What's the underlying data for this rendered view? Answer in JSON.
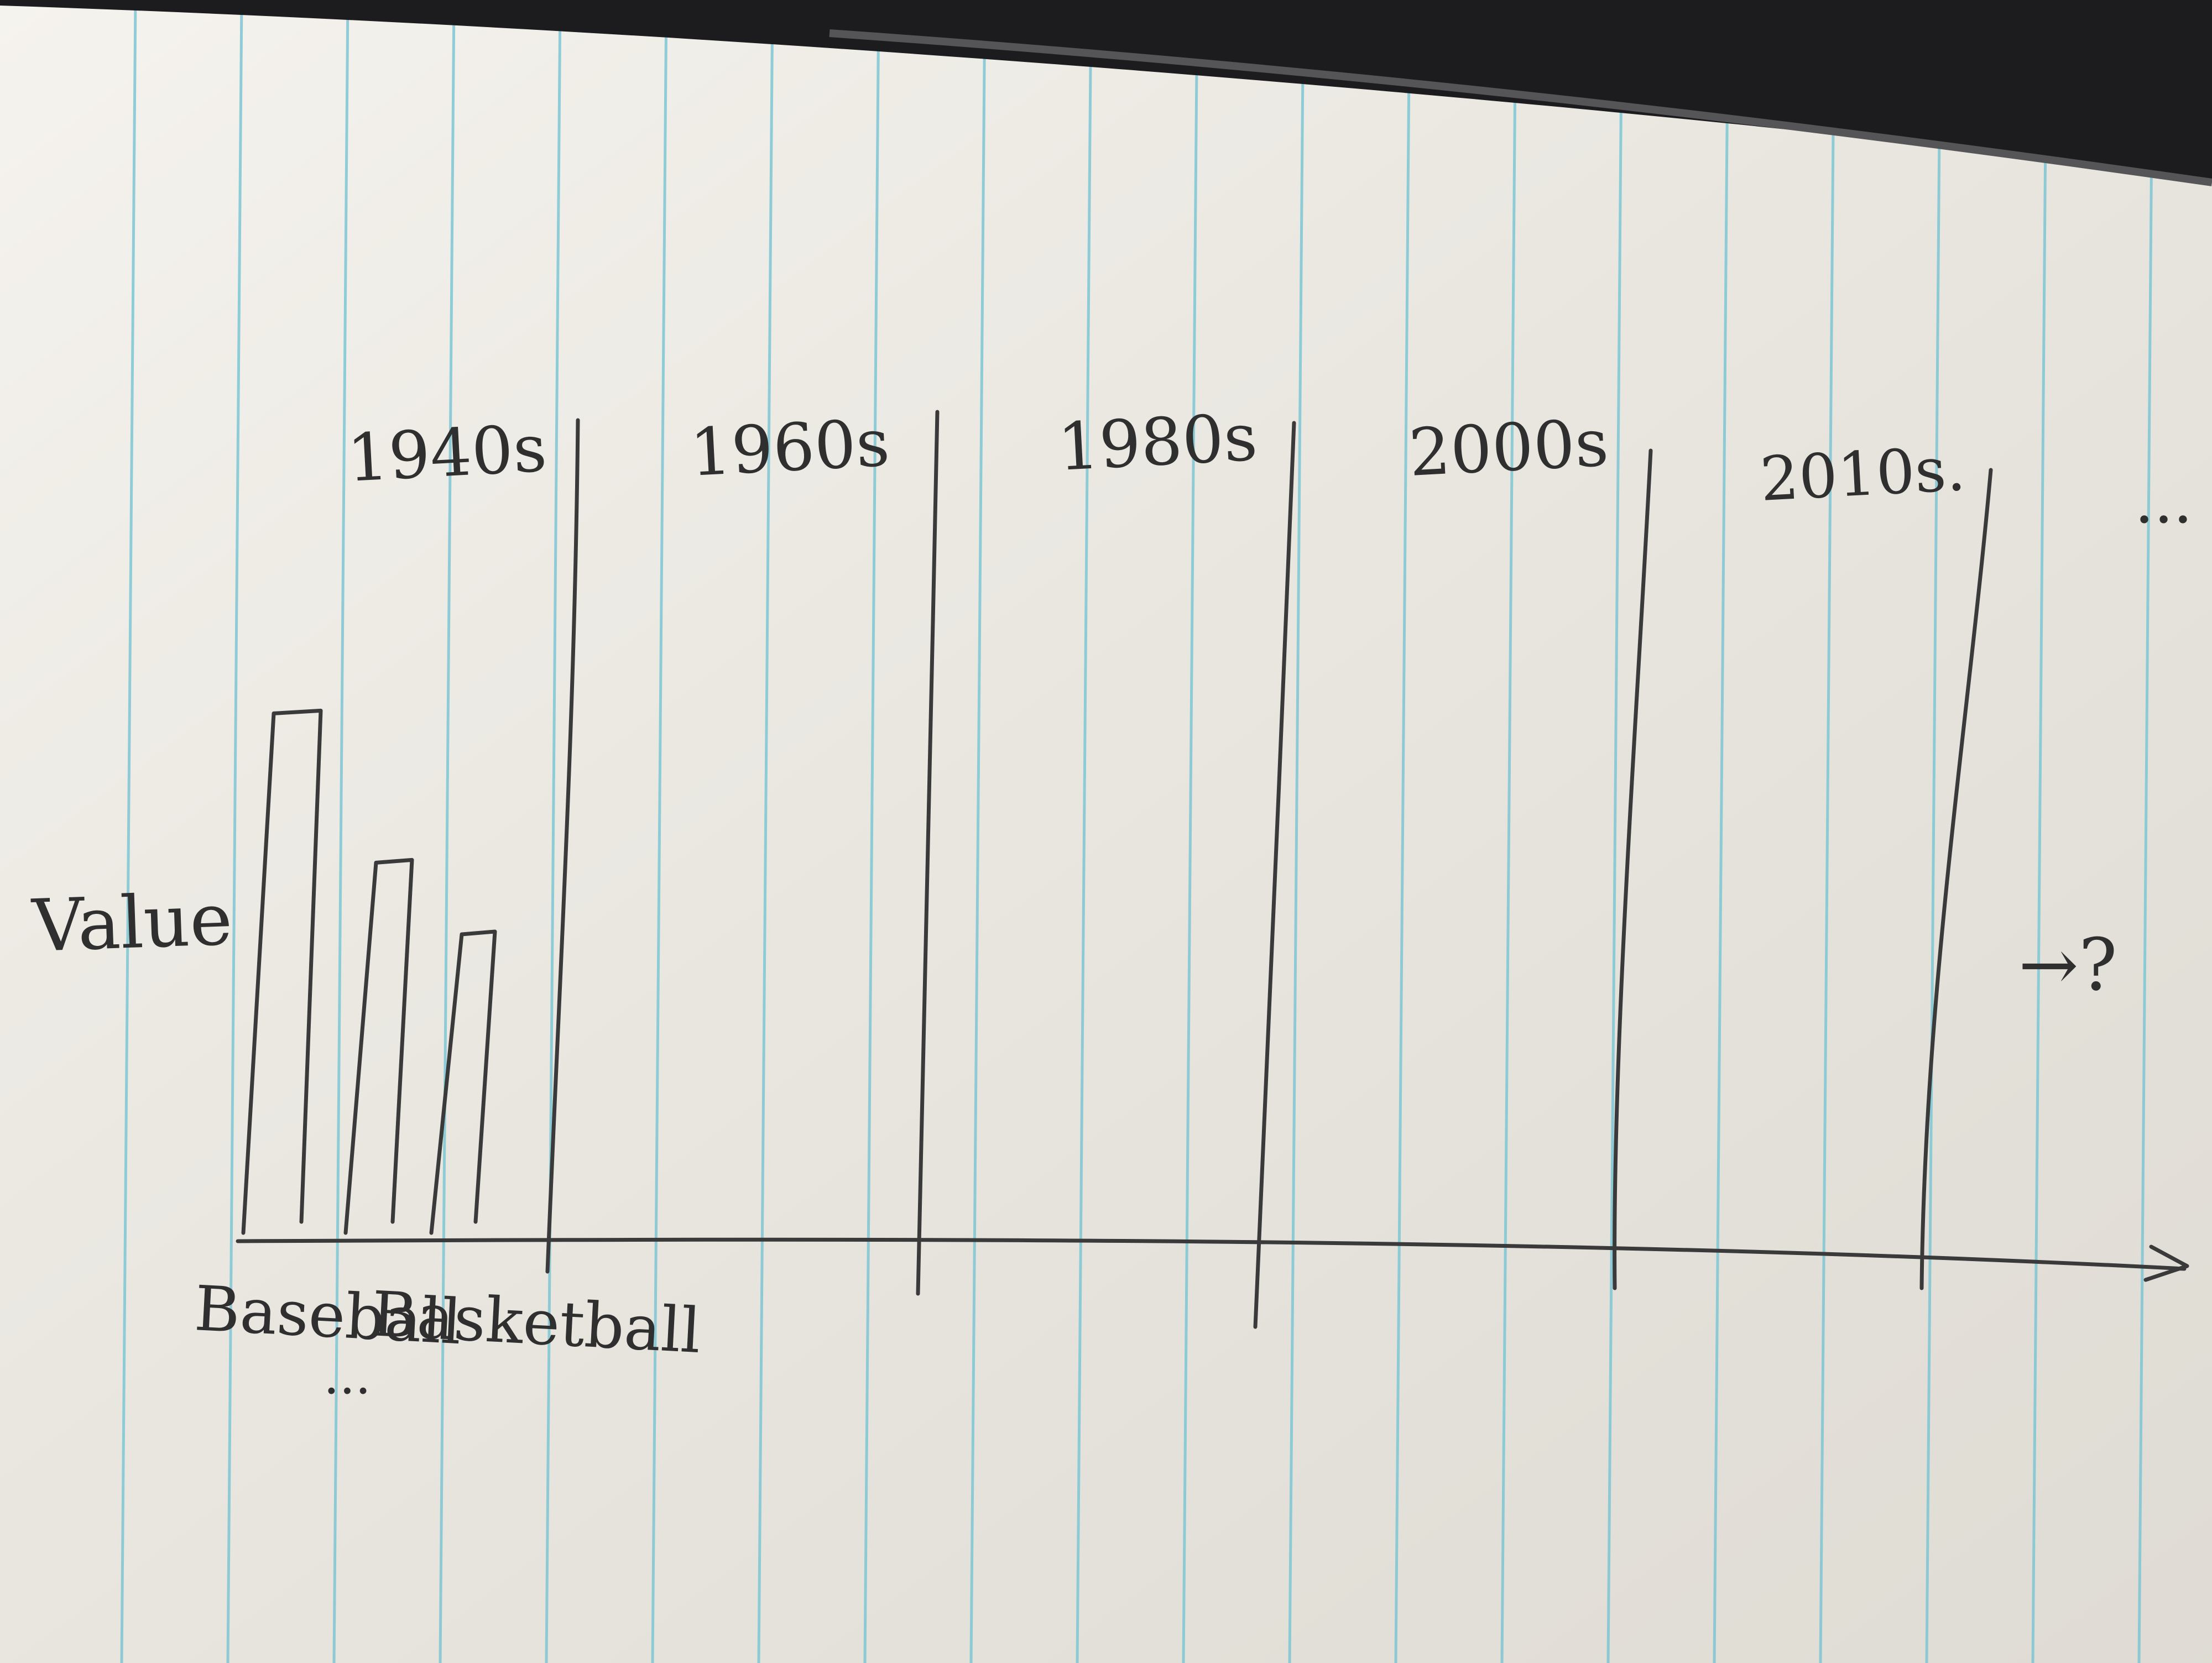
{
  "y_axis_label": "Value",
  "decades": [
    "1940s",
    "1960s",
    "1980s",
    "2000s",
    "2010s."
  ],
  "decade_overflow": "...",
  "sports": [
    "Baseball",
    "Basketball"
  ],
  "sports_overflow": "...",
  "continue_mark": "→?",
  "colors": {
    "paper": "#f2efe8",
    "rule_line": "#7cc6d3",
    "pencil": "#3a3a3a",
    "device_edge": "#1c1c1e"
  },
  "chart_data": {
    "type": "bar",
    "note": "Hand-drawn sketch: bars have no numeric scale; values are relative bar heights.",
    "groups": [
      {
        "label": "1940s",
        "categories": [
          "Baseball",
          "",
          "Basketball"
        ],
        "relative_values": [
          0.87,
          0.62,
          0.5
        ]
      },
      {
        "label": "1960s",
        "categories": [],
        "relative_values": []
      },
      {
        "label": "1980s",
        "categories": [],
        "relative_values": []
      },
      {
        "label": "2000s",
        "categories": [],
        "relative_values": []
      },
      {
        "label": "2010s.",
        "categories": [],
        "relative_values": []
      }
    ],
    "ylabel": "Value",
    "xlabel": ""
  }
}
